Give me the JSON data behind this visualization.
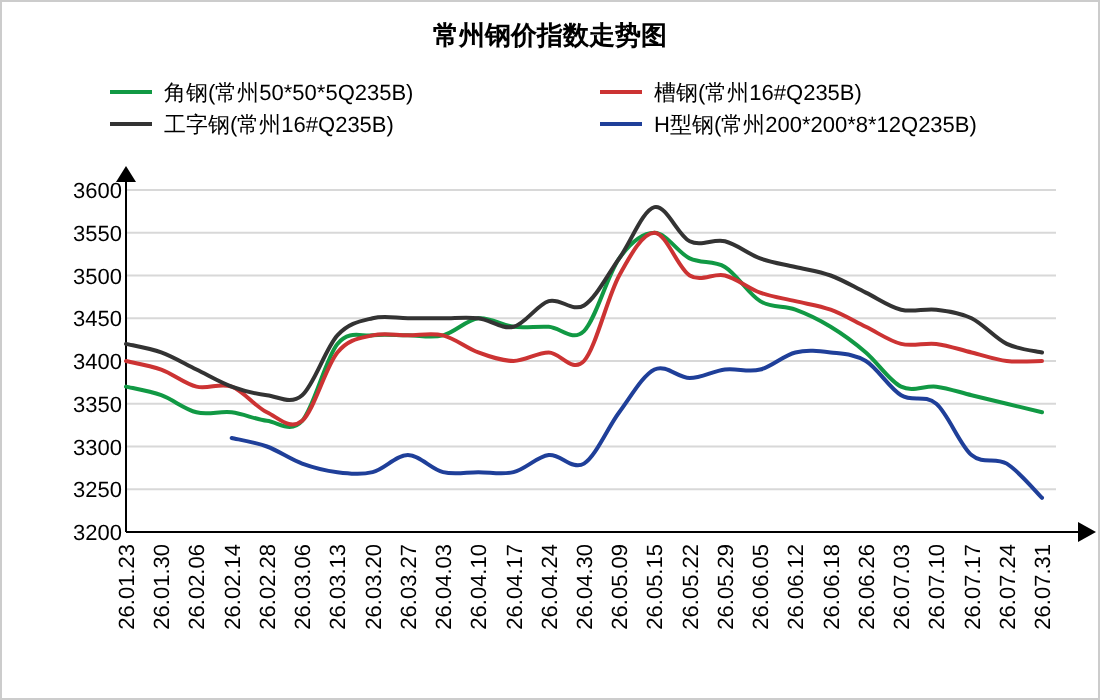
{
  "chart_data": {
    "type": "line",
    "title": "常州钢价指数走势图",
    "categories": [
      "26.01.23",
      "26.01.30",
      "26.02.06",
      "26.02.14",
      "26.02.28",
      "26.03.06",
      "26.03.13",
      "26.03.20",
      "26.03.27",
      "26.04.03",
      "26.04.10",
      "26.04.17",
      "26.04.24",
      "26.04.30",
      "26.05.09",
      "26.05.15",
      "26.05.22",
      "26.05.29",
      "26.06.05",
      "26.06.12",
      "26.06.18",
      "26.06.26",
      "26.07.03",
      "26.07.10",
      "26.07.17",
      "26.07.24",
      "26.07.31"
    ],
    "series": [
      {
        "name": "角钢(常州50*50*5Q235B)",
        "color": "#119944",
        "values": [
          3370,
          3360,
          3340,
          3340,
          3330,
          3330,
          3420,
          3430,
          3430,
          3430,
          3450,
          3440,
          3440,
          3435,
          3520,
          3550,
          3520,
          3510,
          3470,
          3460,
          3440,
          3410,
          3370,
          3370,
          3360,
          3350,
          3340
        ]
      },
      {
        "name": "槽钢(常州16#Q235B)",
        "color": "#cc3333",
        "values": [
          3400,
          3390,
          3370,
          3370,
          3340,
          3330,
          3410,
          3430,
          3430,
          3430,
          3410,
          3400,
          3410,
          3400,
          3500,
          3550,
          3500,
          3500,
          3480,
          3470,
          3460,
          3440,
          3420,
          3420,
          3410,
          3400,
          3400
        ]
      },
      {
        "name": "工字钢(常州16#Q235B)",
        "color": "#333333",
        "values": [
          3420,
          3410,
          3390,
          3370,
          3360,
          3360,
          3430,
          3450,
          3450,
          3450,
          3450,
          3440,
          3470,
          3465,
          3520,
          3580,
          3540,
          3540,
          3520,
          3510,
          3500,
          3480,
          3460,
          3460,
          3450,
          3420,
          3410
        ]
      },
      {
        "name": "H型钢(常州200*200*8*12Q235B)",
        "color": "#1f3f99",
        "values": [
          null,
          null,
          null,
          3310,
          3300,
          3280,
          3270,
          3270,
          3290,
          3270,
          3270,
          3270,
          3290,
          3280,
          3340,
          3390,
          3380,
          3390,
          3390,
          3410,
          3410,
          3400,
          3360,
          3350,
          3290,
          3280,
          3240
        ]
      }
    ],
    "ylim": [
      3200,
      3600
    ],
    "yticks": [
      3200,
      3250,
      3300,
      3350,
      3400,
      3450,
      3500,
      3550,
      3600
    ],
    "grid": "y",
    "legend": "top"
  }
}
